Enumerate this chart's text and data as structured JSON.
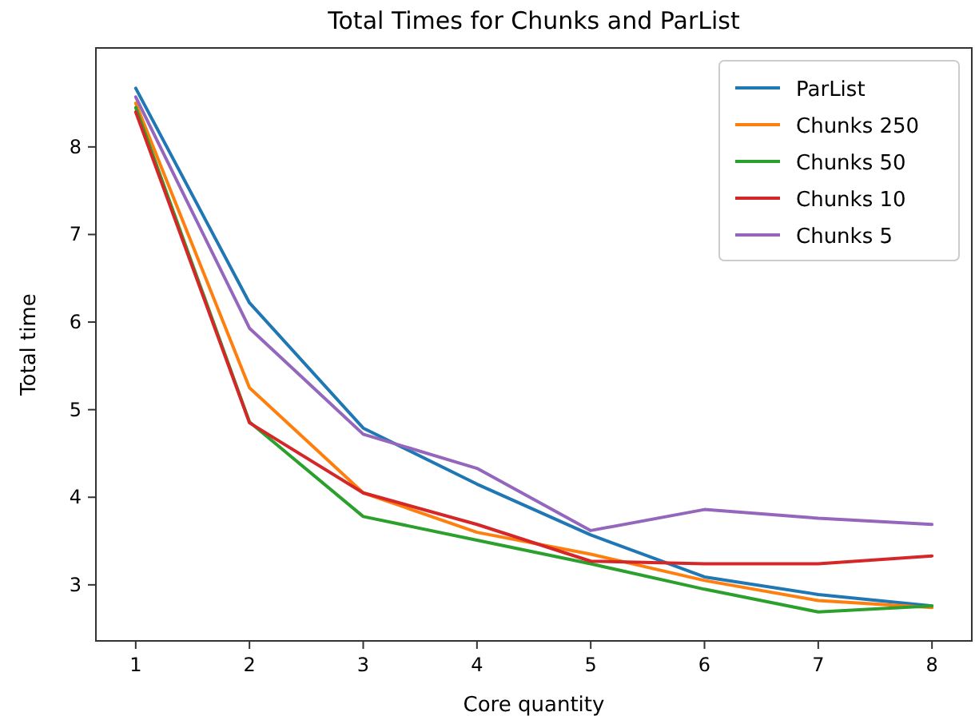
{
  "chart_data": {
    "type": "line",
    "title": "Total Times for Chunks and ParList",
    "xlabel": "Core quantity",
    "ylabel": "Total time",
    "x": [
      1,
      2,
      3,
      4,
      5,
      6,
      7,
      8
    ],
    "series": [
      {
        "name": "ParList",
        "color": "#1f77b4",
        "values": [
          8.67,
          6.22,
          4.79,
          4.15,
          3.57,
          3.09,
          2.89,
          2.76
        ]
      },
      {
        "name": "Chunks 250",
        "color": "#ff7f0e",
        "values": [
          8.5,
          5.25,
          4.05,
          3.6,
          3.35,
          3.05,
          2.82,
          2.74
        ]
      },
      {
        "name": "Chunks 50",
        "color": "#2ca02c",
        "values": [
          8.45,
          4.86,
          3.78,
          3.51,
          3.24,
          2.95,
          2.69,
          2.76
        ]
      },
      {
        "name": "Chunks 10",
        "color": "#d62728",
        "values": [
          8.4,
          4.85,
          4.05,
          3.69,
          3.27,
          3.24,
          3.24,
          3.33
        ]
      },
      {
        "name": "Chunks 5",
        "color": "#9467bd",
        "values": [
          8.57,
          5.93,
          4.72,
          4.33,
          3.62,
          3.86,
          3.76,
          3.69
        ]
      }
    ],
    "xlim": [
      0.65,
      8.35
    ],
    "ylim": [
      2.36,
      9.13
    ],
    "xticks": [
      1,
      2,
      3,
      4,
      5,
      6,
      7,
      8
    ],
    "yticks": [
      3,
      4,
      5,
      6,
      7,
      8
    ],
    "grid": false,
    "legend": "top right",
    "marker": "none",
    "line_style": "solid"
  }
}
